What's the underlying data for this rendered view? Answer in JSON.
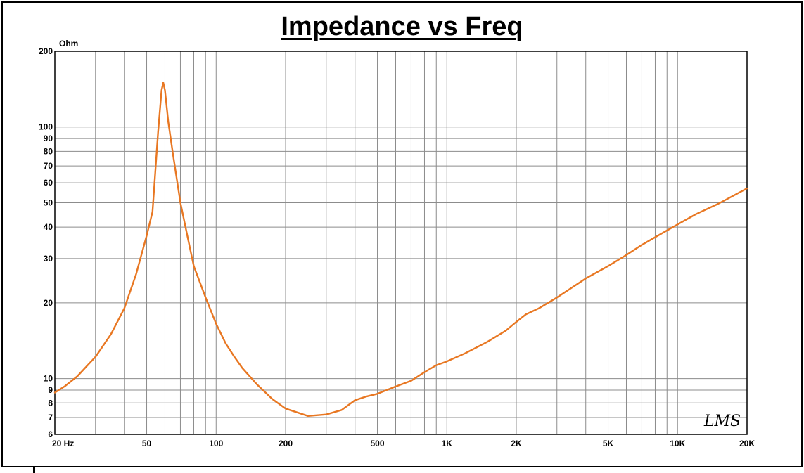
{
  "chart_data": {
    "type": "line",
    "title": "Impedance vs Freq",
    "ylabel": "Ohm",
    "xlabel": "",
    "x_scale": "log",
    "y_scale": "log",
    "xlim": [
      20,
      20000
    ],
    "ylim": [
      6,
      200
    ],
    "grid": true,
    "legend": "none",
    "x_ticks": [
      {
        "value": 20,
        "label": "20  Hz"
      },
      {
        "value": 50,
        "label": "50"
      },
      {
        "value": 100,
        "label": "100"
      },
      {
        "value": 200,
        "label": "200"
      },
      {
        "value": 500,
        "label": "500"
      },
      {
        "value": 1000,
        "label": "1K"
      },
      {
        "value": 2000,
        "label": "2K"
      },
      {
        "value": 5000,
        "label": "5K"
      },
      {
        "value": 10000,
        "label": "10K"
      },
      {
        "value": 20000,
        "label": "20K"
      }
    ],
    "x_grid": [
      20,
      30,
      40,
      50,
      60,
      70,
      80,
      90,
      100,
      200,
      300,
      400,
      500,
      600,
      700,
      800,
      900,
      1000,
      2000,
      3000,
      4000,
      5000,
      6000,
      7000,
      8000,
      9000,
      10000,
      20000
    ],
    "y_ticks": [
      {
        "value": 200,
        "label": "200"
      },
      {
        "value": 100,
        "label": "100"
      },
      {
        "value": 90,
        "label": "90"
      },
      {
        "value": 80,
        "label": "80"
      },
      {
        "value": 70,
        "label": "70"
      },
      {
        "value": 60,
        "label": "60"
      },
      {
        "value": 50,
        "label": "50"
      },
      {
        "value": 40,
        "label": "40"
      },
      {
        "value": 30,
        "label": "30"
      },
      {
        "value": 20,
        "label": "20"
      },
      {
        "value": 10,
        "label": "10"
      },
      {
        "value": 9,
        "label": "9"
      },
      {
        "value": 8,
        "label": "8"
      },
      {
        "value": 7,
        "label": "7"
      },
      {
        "value": 6,
        "label": "6"
      }
    ],
    "series": [
      {
        "color": "#E87722",
        "points": [
          [
            20,
            8.8
          ],
          [
            22,
            9.3
          ],
          [
            25,
            10.2
          ],
          [
            28,
            11.4
          ],
          [
            30,
            12.2
          ],
          [
            35,
            15.0
          ],
          [
            40,
            19.0
          ],
          [
            45,
            26.0
          ],
          [
            50,
            37.0
          ],
          [
            53,
            46
          ],
          [
            56,
            95
          ],
          [
            58,
            140
          ],
          [
            59,
            150
          ],
          [
            60,
            140
          ],
          [
            62,
            105
          ],
          [
            65,
            78
          ],
          [
            70,
            50
          ],
          [
            75,
            37
          ],
          [
            80,
            28
          ],
          [
            90,
            21
          ],
          [
            100,
            16.5
          ],
          [
            110,
            13.8
          ],
          [
            120,
            12.2
          ],
          [
            130,
            11.0
          ],
          [
            150,
            9.5
          ],
          [
            175,
            8.3
          ],
          [
            200,
            7.6
          ],
          [
            250,
            7.1
          ],
          [
            300,
            7.2
          ],
          [
            350,
            7.5
          ],
          [
            400,
            8.2
          ],
          [
            450,
            8.5
          ],
          [
            500,
            8.7
          ],
          [
            600,
            9.3
          ],
          [
            700,
            9.8
          ],
          [
            800,
            10.6
          ],
          [
            900,
            11.3
          ],
          [
            1000,
            11.7
          ],
          [
            1200,
            12.6
          ],
          [
            1500,
            14.0
          ],
          [
            1800,
            15.5
          ],
          [
            2000,
            16.8
          ],
          [
            2200,
            18.0
          ],
          [
            2500,
            19.0
          ],
          [
            3000,
            21.0
          ],
          [
            4000,
            25.0
          ],
          [
            5000,
            28.0
          ],
          [
            6000,
            31.0
          ],
          [
            7000,
            34.0
          ],
          [
            8000,
            36.5
          ],
          [
            10000,
            41.0
          ],
          [
            12000,
            45.0
          ],
          [
            15000,
            49.5
          ],
          [
            20000,
            57.0
          ]
        ]
      }
    ]
  },
  "logo": {
    "text": "LMS",
    "name": "lms-logo"
  }
}
